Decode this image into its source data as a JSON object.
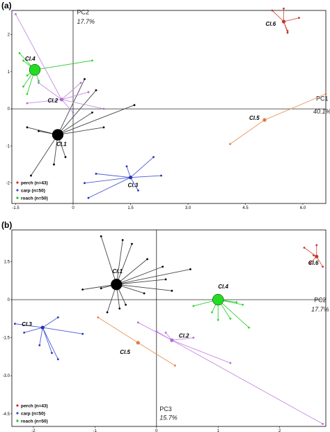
{
  "chart_data": [
    {
      "type": "scatter",
      "panel": "(a)",
      "x_axis": {
        "label": "PC1",
        "percent": "40.1%",
        "ticks": [
          "-1.5",
          "0",
          "1.5",
          "3.0",
          "4.5",
          "6.0"
        ],
        "range": [
          -1.6,
          6.6
        ]
      },
      "y_axis": {
        "label": "PC2",
        "percent": "17.7%",
        "ticks": [
          "2",
          "1",
          "0",
          "-1",
          "-2"
        ],
        "range": [
          -2.55,
          2.65
        ]
      },
      "legend": [
        {
          "label": "perch (n=43)",
          "color": "#d62728"
        },
        {
          "label": "carp  (n=50)",
          "color": "#3a4bd0"
        },
        {
          "label": "roach (n=50)",
          "color": "#22c022"
        }
      ],
      "clusters": [
        {
          "name": "Cl.1",
          "centroid": [
            -0.4,
            -0.7
          ],
          "size": "large",
          "color": "#000000",
          "line": "#444444",
          "points": [
            [
              -1.1,
              -1.8
            ],
            [
              -0.5,
              -1.5
            ],
            [
              -0.2,
              -1.3
            ],
            [
              -1.2,
              -0.5
            ],
            [
              -0.9,
              -0.6
            ],
            [
              0.3,
              0.8
            ],
            [
              0.6,
              0.5
            ],
            [
              1.6,
              0.1
            ],
            [
              0.8,
              -0.5
            ],
            [
              0.5,
              -0.1
            ]
          ]
        },
        {
          "name": "Cl.2",
          "centroid": [
            -0.3,
            0.25
          ],
          "size": "small",
          "color": "#b36ad3",
          "line": "#c58ae0",
          "points": [
            [
              -1.5,
              2.55
            ],
            [
              -0.9,
              0.7
            ],
            [
              -1.2,
              0.15
            ],
            [
              0.0,
              -0.1
            ],
            [
              0.8,
              0.0
            ],
            [
              0.2,
              0.7
            ],
            [
              0.4,
              0.45
            ]
          ]
        },
        {
          "name": "Cl.3",
          "centroid": [
            1.5,
            -1.85
          ],
          "size": "small",
          "color": "#2233aa",
          "line": "#4a5ad8",
          "points": [
            [
              0.4,
              -2.4
            ],
            [
              0.3,
              -2.0
            ],
            [
              0.6,
              -1.75
            ],
            [
              1.4,
              -1.55
            ],
            [
              2.1,
              -1.3
            ],
            [
              2.3,
              -1.8
            ],
            [
              1.7,
              -2.2
            ]
          ]
        },
        {
          "name": "Cl.4",
          "centroid": [
            -1.0,
            1.05
          ],
          "size": "large",
          "color": "#22dd22",
          "line": "#33cc33",
          "points": [
            [
              -1.4,
              1.5
            ],
            [
              -1.3,
              1.3
            ],
            [
              -1.2,
              0.9
            ],
            [
              -1.3,
              0.6
            ],
            [
              -1.2,
              0.4
            ],
            [
              -0.9,
              0.75
            ],
            [
              0.5,
              1.3
            ]
          ]
        },
        {
          "name": "Cl.5",
          "centroid": [
            5.0,
            -0.3
          ],
          "size": "small",
          "color": "#e07b39",
          "line": "#e8955a",
          "points": [
            [
              6.6,
              0.4
            ],
            [
              4.1,
              -0.95
            ]
          ]
        },
        {
          "name": "Cl.6",
          "centroid": [
            5.5,
            2.35
          ],
          "size": "small",
          "color": "#c0392b",
          "line": "#d9534f",
          "points": [
            [
              5.2,
              2.65
            ],
            [
              5.5,
              2.7
            ],
            [
              5.9,
              2.45
            ],
            [
              5.6,
              2.1
            ],
            [
              5.6,
              2.05
            ]
          ]
        }
      ]
    },
    {
      "type": "scatter",
      "panel": "(b)",
      "x_axis": {
        "label": "PC2",
        "percent": "17.7%",
        "ticks": [
          "-2",
          "-1",
          "0",
          "1",
          "2"
        ],
        "range": [
          -2.35,
          2.75
        ]
      },
      "y_axis": {
        "label": "PC3",
        "percent": "15.7%",
        "ticks": [
          "1.5",
          "0",
          "-1.5",
          "-3.0",
          "-4.5"
        ],
        "range": [
          -5.0,
          2.75
        ]
      },
      "legend": [
        {
          "label": "perch (n=43)",
          "color": "#d62728"
        },
        {
          "label": "carp  (n=50)",
          "color": "#3a4bd0"
        },
        {
          "label": "roach (n=50)",
          "color": "#22c022"
        }
      ],
      "clusters": [
        {
          "name": "Cl.1",
          "centroid": [
            -0.65,
            0.6
          ],
          "size": "large",
          "color": "#000000",
          "line": "#444444",
          "points": [
            [
              -0.9,
              2.5
            ],
            [
              -0.55,
              2.35
            ],
            [
              -0.4,
              2.2
            ],
            [
              -0.15,
              1.6
            ],
            [
              0.1,
              1.3
            ],
            [
              0.55,
              1.2
            ],
            [
              0.15,
              0.8
            ],
            [
              0.25,
              0.35
            ],
            [
              -0.2,
              0.25
            ],
            [
              -0.6,
              -0.35
            ],
            [
              -0.5,
              -0.2
            ],
            [
              -0.8,
              -0.5
            ],
            [
              -1.2,
              0.4
            ],
            [
              -0.9,
              0.45
            ]
          ]
        },
        {
          "name": "Cl.2",
          "centroid": [
            0.25,
            -1.6
          ],
          "size": "small",
          "color": "#b36ad3",
          "line": "#c58ae0",
          "points": [
            [
              2.7,
              -4.9
            ],
            [
              -0.3,
              -0.9
            ],
            [
              0.0,
              -1.25
            ],
            [
              0.15,
              -1.3
            ],
            [
              1.2,
              -2.5
            ],
            [
              0.6,
              -1.5
            ]
          ]
        },
        {
          "name": "Cl.3",
          "centroid": [
            -1.85,
            -1.1
          ],
          "size": "small",
          "color": "#2233aa",
          "line": "#4a5ad8",
          "points": [
            [
              -2.3,
              -0.95
            ],
            [
              -2.15,
              -1.3
            ],
            [
              -1.6,
              -0.7
            ],
            [
              -1.2,
              -1.35
            ],
            [
              -1.9,
              -1.8
            ],
            [
              -1.7,
              -2.1
            ],
            [
              -1.6,
              -2.35
            ]
          ]
        },
        {
          "name": "Cl.4",
          "centroid": [
            1.0,
            0.0
          ],
          "size": "large",
          "color": "#22dd22",
          "line": "#33cc33",
          "points": [
            [
              0.6,
              -0.25
            ],
            [
              0.9,
              -0.5
            ],
            [
              1.0,
              -0.8
            ],
            [
              1.2,
              -0.75
            ],
            [
              1.5,
              -1.1
            ],
            [
              1.4,
              -0.2
            ],
            [
              1.3,
              -0.1
            ]
          ]
        },
        {
          "name": "Cl.5",
          "centroid": [
            -0.3,
            -1.7
          ],
          "size": "small",
          "color": "#e07b39",
          "line": "#e8955a",
          "points": [
            [
              -0.95,
              -0.7
            ],
            [
              0.3,
              -2.6
            ]
          ]
        },
        {
          "name": "Cl.6",
          "centroid": [
            2.6,
            1.7
          ],
          "size": "small",
          "color": "#c0392b",
          "line": "#d9534f",
          "points": [
            [
              2.4,
              2.05
            ],
            [
              2.6,
              2.15
            ],
            [
              2.55,
              1.75
            ],
            [
              2.7,
              1.3
            ],
            [
              2.5,
              1.45
            ]
          ]
        }
      ]
    }
  ]
}
